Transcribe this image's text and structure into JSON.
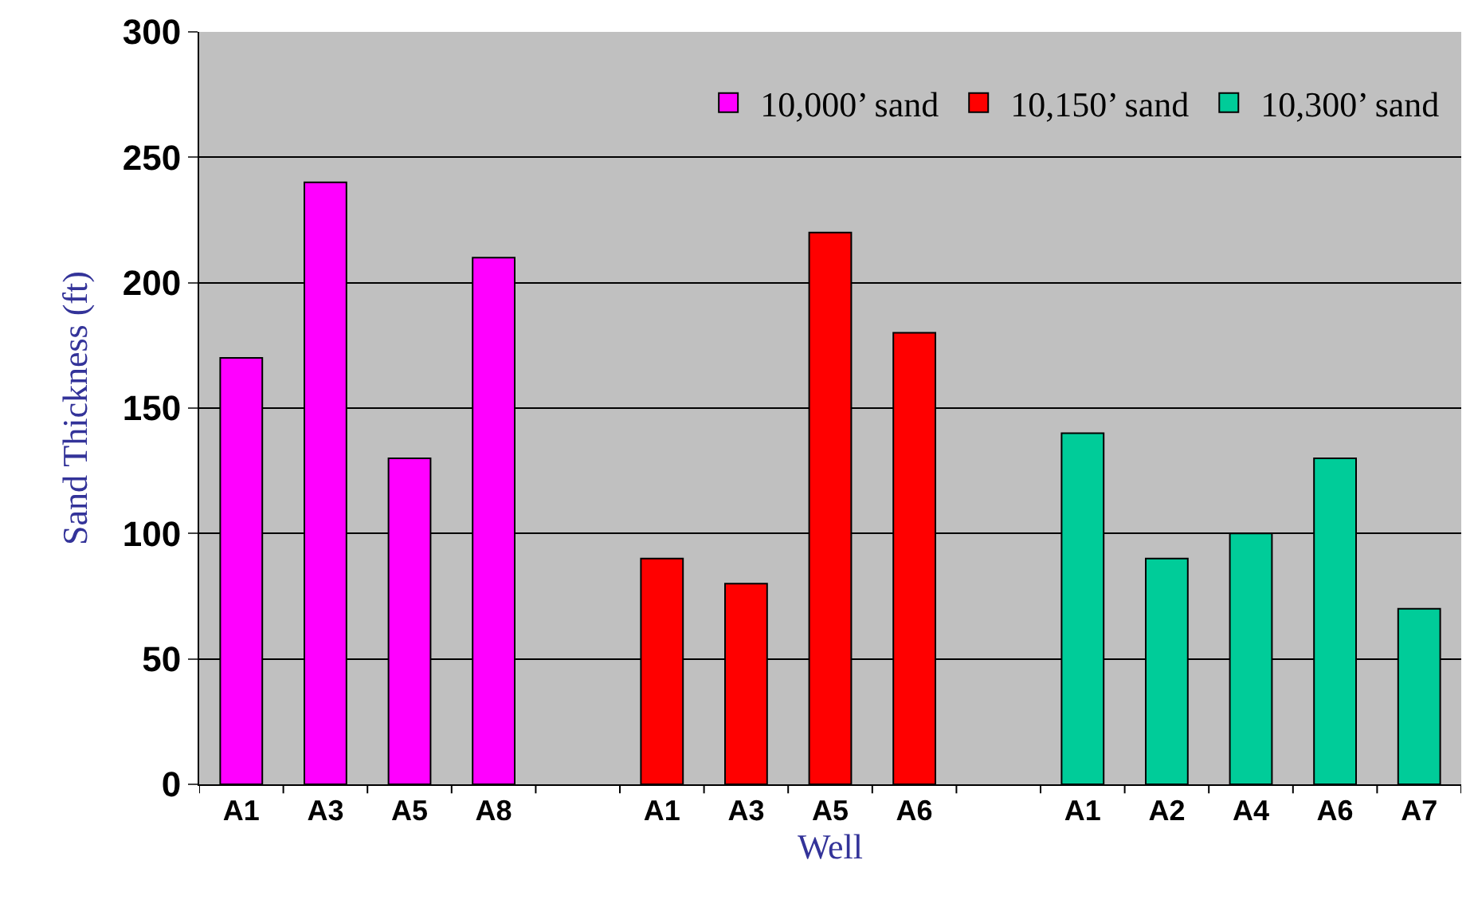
{
  "chart_data": {
    "type": "bar",
    "xlabel": "Well",
    "ylabel": "Sand Thickness (ft)",
    "categories": [
      "A1",
      "A3",
      "A5",
      "A8",
      null,
      "A1",
      "A3",
      "A5",
      "A6",
      null,
      "A1",
      "A2",
      "A4",
      "A6",
      "A7"
    ],
    "series": [
      {
        "name": "10,000’ sand",
        "color": "#ff00ff",
        "values": [
          170,
          240,
          130,
          210,
          null,
          null,
          null,
          null,
          null,
          null,
          null,
          null,
          null,
          null,
          null
        ]
      },
      {
        "name": "10,150’ sand",
        "color": "#ff0000",
        "values": [
          null,
          null,
          null,
          null,
          null,
          90,
          80,
          220,
          180,
          null,
          null,
          null,
          null,
          null,
          null
        ]
      },
      {
        "name": "10,300’ sand",
        "color": "#00cc99",
        "values": [
          null,
          null,
          null,
          null,
          null,
          null,
          null,
          null,
          null,
          null,
          140,
          90,
          100,
          130,
          70
        ]
      }
    ],
    "ylim": [
      0,
      300
    ],
    "yticks": [
      0,
      50,
      100,
      150,
      200,
      250,
      300
    ],
    "grid": "y",
    "legend": "top right"
  }
}
